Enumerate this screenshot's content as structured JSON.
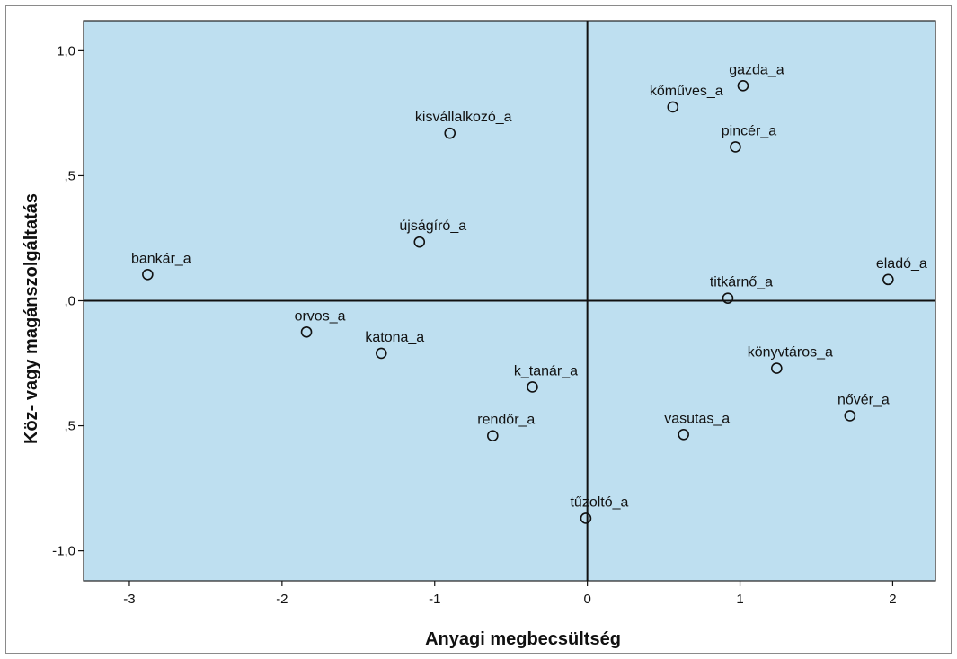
{
  "chart_data": {
    "type": "scatter",
    "xlabel": "Anyagi megbecsültség",
    "ylabel": "Köz- vagy magánszolgáltatás",
    "xlim": [
      -3.3,
      2.28
    ],
    "ylim": [
      -1.12,
      1.12
    ],
    "x_ticks": [
      -3,
      -2,
      -1,
      0,
      1,
      2
    ],
    "x_tick_labels": [
      "-3",
      "-2",
      "-1",
      "0",
      "1",
      "2"
    ],
    "y_ticks": [
      1.0,
      0.5,
      0.0,
      -0.5,
      -1.0
    ],
    "y_tick_labels": [
      "1,0",
      ",5",
      ",0",
      ",5",
      "-1,0"
    ],
    "reference_lines": {
      "x": 0,
      "y": 0
    },
    "grid": false,
    "legend": "none",
    "background_color": "#bedff0",
    "marker": "open-circle",
    "points": [
      {
        "label": "gazda_a",
        "x": 1.02,
        "y": 0.86
      },
      {
        "label": "kőműves_a",
        "x": 0.56,
        "y": 0.775
      },
      {
        "label": "pincér_a",
        "x": 0.97,
        "y": 0.615
      },
      {
        "label": "kisvállalkozó_a",
        "x": -0.9,
        "y": 0.67
      },
      {
        "label": "újságíró_a",
        "x": -1.1,
        "y": 0.235
      },
      {
        "label": "bankár_a",
        "x": -2.88,
        "y": 0.105
      },
      {
        "label": "eladó_a",
        "x": 1.97,
        "y": 0.085
      },
      {
        "label": "titkárnő_a",
        "x": 0.92,
        "y": 0.01
      },
      {
        "label": "orvos_a",
        "x": -1.84,
        "y": -0.125
      },
      {
        "label": "katona_a",
        "x": -1.35,
        "y": -0.21
      },
      {
        "label": "könyvtáros_a",
        "x": 1.24,
        "y": -0.27
      },
      {
        "label": "k_tanár_a",
        "x": -0.36,
        "y": -0.345
      },
      {
        "label": "nővér_a",
        "x": 1.72,
        "y": -0.46
      },
      {
        "label": "rendőr_a",
        "x": -0.62,
        "y": -0.54
      },
      {
        "label": "vasutas_a",
        "x": 0.63,
        "y": -0.535
      },
      {
        "label": "tűzoltó_a",
        "x": -0.01,
        "y": -0.87
      }
    ]
  }
}
